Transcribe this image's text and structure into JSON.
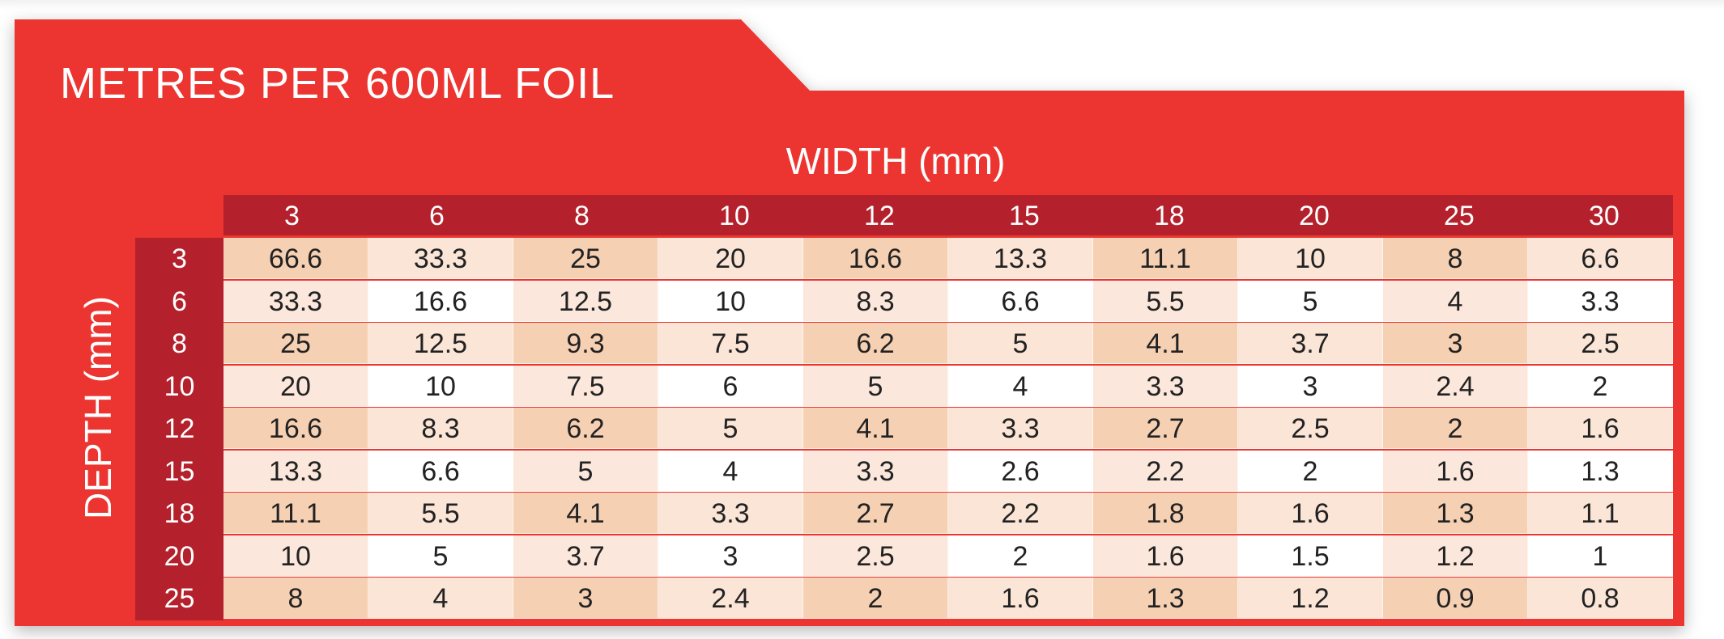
{
  "title": "METRES PER 600ML FOIL",
  "width_label": "WIDTH (mm)",
  "depth_label": "DEPTH (mm)",
  "columns": [
    "3",
    "6",
    "8",
    "10",
    "12",
    "15",
    "18",
    "20",
    "25",
    "30"
  ],
  "rows": [
    {
      "depth": "3",
      "values": [
        "66.6",
        "33.3",
        "25",
        "20",
        "16.6",
        "13.3",
        "11.1",
        "10",
        "8",
        "6.6"
      ]
    },
    {
      "depth": "6",
      "values": [
        "33.3",
        "16.6",
        "12.5",
        "10",
        "8.3",
        "6.6",
        "5.5",
        "5",
        "4",
        "3.3"
      ]
    },
    {
      "depth": "8",
      "values": [
        "25",
        "12.5",
        "9.3",
        "7.5",
        "6.2",
        "5",
        "4.1",
        "3.7",
        "3",
        "2.5"
      ]
    },
    {
      "depth": "10",
      "values": [
        "20",
        "10",
        "7.5",
        "6",
        "5",
        "4",
        "3.3",
        "3",
        "2.4",
        "2"
      ]
    },
    {
      "depth": "12",
      "values": [
        "16.6",
        "8.3",
        "6.2",
        "5",
        "4.1",
        "3.3",
        "2.7",
        "2.5",
        "2",
        "1.6"
      ]
    },
    {
      "depth": "15",
      "values": [
        "13.3",
        "6.6",
        "5",
        "4",
        "3.3",
        "2.6",
        "2.2",
        "2",
        "1.6",
        "1.3"
      ]
    },
    {
      "depth": "18",
      "values": [
        "11.1",
        "5.5",
        "4.1",
        "3.3",
        "2.7",
        "2.2",
        "1.8",
        "1.6",
        "1.3",
        "1.1"
      ]
    },
    {
      "depth": "20",
      "values": [
        "10",
        "5",
        "3.7",
        "3",
        "2.5",
        "2",
        "1.6",
        "1.5",
        "1.2",
        "1"
      ]
    },
    {
      "depth": "25",
      "values": [
        "8",
        "4",
        "3",
        "2.4",
        "2",
        "1.6",
        "1.3",
        "1.2",
        "0.9",
        "0.8"
      ]
    }
  ],
  "colors": {
    "card": "#ec3530",
    "header": "#b4202b",
    "cell_dark": "#f6d0b3",
    "cell_light": "#fbe5d7",
    "cell_white": "#ffffff"
  }
}
